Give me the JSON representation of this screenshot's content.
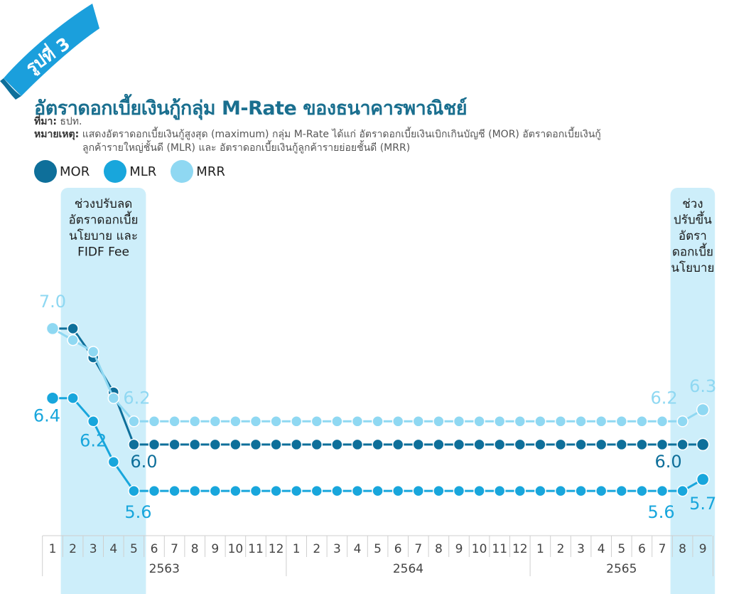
{
  "figure_badge": "รูปที่ 3",
  "title": "อัตราดอกเบี้ยเงินกู้กลุ่ม M-Rate ของธนาคารพาณิชย์",
  "source": {
    "label": "ที่มา:",
    "text": "ธปท."
  },
  "note": {
    "label": "หมายเหตุ:",
    "line1": "แสดงอัตราดอกเบี้ยเงินกู้สูงสุด (maximum) กลุ่ม M-Rate ได้แก่ อัตราดอกเบี้ยเงินเบิกเกินบัญชี (MOR) อัตราดอกเบี้ยเงินกู้",
    "line2": "ลูกค้ารายใหญ่ชั้นดี (MLR) และ อัตราดอกเบี้ยเงินกู้ลูกค้ารายย่อยชั้นดี (MRR)"
  },
  "colors": {
    "MOR": "#0e6f9a",
    "MLR": "#18a6dc",
    "MRR": "#8fd8f2",
    "band": "#cdeefa",
    "badge": "#1b9fdc"
  },
  "chart_data": {
    "type": "line",
    "categories": [
      "1",
      "2",
      "3",
      "4",
      "5",
      "6",
      "7",
      "8",
      "9",
      "10",
      "11",
      "12",
      "1",
      "2",
      "3",
      "4",
      "5",
      "6",
      "7",
      "8",
      "9",
      "10",
      "11",
      "12",
      "1",
      "2",
      "3",
      "4",
      "5",
      "6",
      "7",
      "8",
      "9"
    ],
    "year_groups": [
      {
        "label": "2563",
        "start": 0,
        "end": 11
      },
      {
        "label": "2564",
        "start": 12,
        "end": 23
      },
      {
        "label": "2565",
        "start": 24,
        "end": 32
      }
    ],
    "series": [
      {
        "name": "MOR",
        "values": [
          7.0,
          7.0,
          6.75,
          6.45,
          6.0,
          6.0,
          6.0,
          6.0,
          6.0,
          6.0,
          6.0,
          6.0,
          6.0,
          6.0,
          6.0,
          6.0,
          6.0,
          6.0,
          6.0,
          6.0,
          6.0,
          6.0,
          6.0,
          6.0,
          6.0,
          6.0,
          6.0,
          6.0,
          6.0,
          6.0,
          6.0,
          6.0,
          6.0
        ]
      },
      {
        "name": "MLR",
        "values": [
          6.4,
          6.4,
          6.2,
          5.85,
          5.6,
          5.6,
          5.6,
          5.6,
          5.6,
          5.6,
          5.6,
          5.6,
          5.6,
          5.6,
          5.6,
          5.6,
          5.6,
          5.6,
          5.6,
          5.6,
          5.6,
          5.6,
          5.6,
          5.6,
          5.6,
          5.6,
          5.6,
          5.6,
          5.6,
          5.6,
          5.6,
          5.6,
          5.7
        ]
      },
      {
        "name": "MRR",
        "values": [
          7.0,
          6.9,
          6.8,
          6.4,
          6.2,
          6.2,
          6.2,
          6.2,
          6.2,
          6.2,
          6.2,
          6.2,
          6.2,
          6.2,
          6.2,
          6.2,
          6.2,
          6.2,
          6.2,
          6.2,
          6.2,
          6.2,
          6.2,
          6.2,
          6.2,
          6.2,
          6.2,
          6.2,
          6.2,
          6.2,
          6.2,
          6.2,
          6.3
        ]
      }
    ],
    "data_labels": [
      {
        "series": "MRR",
        "index": 0,
        "text": "7.0"
      },
      {
        "series": "MLR",
        "index": 0,
        "text": "6.4"
      },
      {
        "series": "MLR",
        "index": 2,
        "text": "6.2"
      },
      {
        "series": "MRR",
        "index": 4,
        "text": "6.2"
      },
      {
        "series": "MOR",
        "index": 4,
        "text": "6.0"
      },
      {
        "series": "MLR",
        "index": 4,
        "text": "5.6"
      },
      {
        "series": "MRR",
        "index": 31,
        "text": "6.2"
      },
      {
        "series": "MOR",
        "index": 31,
        "text": "6.0"
      },
      {
        "series": "MLR",
        "index": 31,
        "text": "5.6"
      },
      {
        "series": "MRR",
        "index": 32,
        "text": "6.3"
      },
      {
        "series": "MLR",
        "index": 32,
        "text": "5.7"
      }
    ],
    "shaded_periods": [
      {
        "start": 1,
        "end": 4,
        "label_lines": [
          "ช่วงปรับลด",
          "อัตราดอกเบี้ย",
          "นโยบาย และ",
          "FIDF Fee"
        ]
      },
      {
        "start": 31,
        "end": 32,
        "label_lines": [
          "ช่วง",
          "ปรับขึ้น",
          "อัตรา",
          "ดอกเบี้ย",
          "นโยบาย"
        ]
      }
    ],
    "ylim": [
      5.0,
      7.6
    ],
    "grid": false,
    "legend_position": "top-left"
  }
}
